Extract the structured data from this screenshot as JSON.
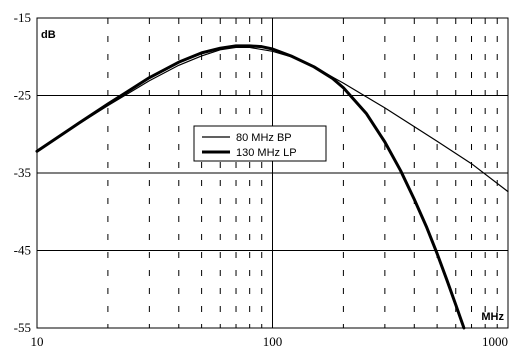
{
  "chart_data": {
    "type": "line",
    "title": "",
    "xlabel": "MHz",
    "ylabel": "dB",
    "x_scale": "log",
    "xlim": [
      10,
      1000
    ],
    "ylim": [
      -55,
      -15
    ],
    "x_ticks": [
      "10",
      "100",
      "1000"
    ],
    "y_ticks": [
      "-15",
      "-25",
      "-35",
      "-45",
      "-55"
    ],
    "grid": "major solid horizontal lines, dashed vertical lines at minor decades",
    "legend_position": "center",
    "series": [
      {
        "name": "80 MHz BP",
        "line": "thin",
        "x": [
          10,
          15,
          20,
          30,
          40,
          50,
          60,
          70,
          80,
          100,
          120,
          150,
          200,
          300,
          500,
          700,
          1000
        ],
        "y": [
          -32.2,
          -28.7,
          -26.3,
          -23.1,
          -21.1,
          -19.9,
          -19.1,
          -18.8,
          -18.8,
          -19.3,
          -20.0,
          -21.3,
          -23.4,
          -26.6,
          -30.9,
          -33.8,
          -37.4
        ]
      },
      {
        "name": "130 MHz LP",
        "line": "thick",
        "x": [
          10,
          15,
          20,
          30,
          40,
          50,
          60,
          70,
          80,
          90,
          100,
          120,
          150,
          180,
          200,
          250,
          300,
          350,
          400,
          450,
          500,
          550,
          600,
          650
        ],
        "y": [
          -32.2,
          -28.6,
          -26.1,
          -22.7,
          -20.7,
          -19.5,
          -18.9,
          -18.6,
          -18.6,
          -18.7,
          -19.0,
          -19.9,
          -21.3,
          -22.8,
          -24.0,
          -27.3,
          -31.0,
          -34.7,
          -38.4,
          -41.9,
          -45.4,
          -48.8,
          -52.0,
          -55.0
        ]
      }
    ]
  }
}
